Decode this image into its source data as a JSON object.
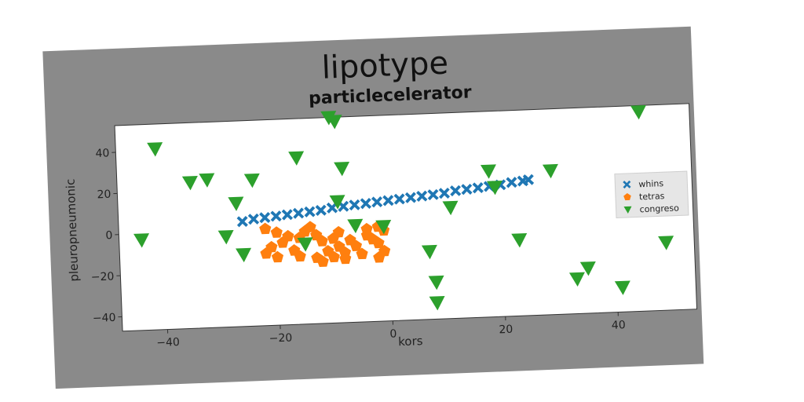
{
  "chart_data": {
    "type": "scatter",
    "title": "lipotype",
    "subtitle": "particlecelerator",
    "xlabel": "kors",
    "ylabel": "pleuropneumonic",
    "xlim": [
      -48,
      54
    ],
    "ylim": [
      -47,
      53
    ],
    "xticks": [
      -40,
      -20,
      0,
      20,
      40
    ],
    "yticks": [
      -40,
      -20,
      0,
      20,
      40
    ],
    "grid": false,
    "legend_position": "right",
    "series": [
      {
        "name": "whins",
        "marker": "X",
        "color": "#1f77b4",
        "points": [
          [
            -26,
            4
          ],
          [
            -24,
            5
          ],
          [
            -22,
            5.5
          ],
          [
            -20,
            6
          ],
          [
            -18,
            6.5
          ],
          [
            -16,
            7
          ],
          [
            -14,
            7.5
          ],
          [
            -12,
            8
          ],
          [
            -10,
            9
          ],
          [
            -8,
            9.5
          ],
          [
            -6,
            10
          ],
          [
            -4,
            10.5
          ],
          [
            -2,
            11
          ],
          [
            0,
            11.5
          ],
          [
            2,
            12
          ],
          [
            4,
            12.5
          ],
          [
            6,
            13
          ],
          [
            8,
            13.5
          ],
          [
            10,
            14
          ],
          [
            12,
            15
          ],
          [
            14,
            15.5
          ],
          [
            16,
            16
          ],
          [
            18,
            16.5
          ],
          [
            20,
            17
          ],
          [
            22,
            18
          ],
          [
            24,
            18.5
          ],
          [
            25,
            19
          ]
        ]
      },
      {
        "name": "tetras",
        "marker": "pentagon",
        "color": "#ff7f0e",
        "points": [
          [
            -22,
            0
          ],
          [
            -20,
            -2
          ],
          [
            -18,
            -4
          ],
          [
            -19,
            -7
          ],
          [
            -21,
            -9
          ],
          [
            -22,
            -12
          ],
          [
            -20,
            -14
          ],
          [
            -17,
            -11
          ],
          [
            -16,
            -5
          ],
          [
            -15,
            -2
          ],
          [
            -14,
            0
          ],
          [
            -13,
            -4
          ],
          [
            -12,
            -7
          ],
          [
            -11,
            -12
          ],
          [
            -13,
            -15
          ],
          [
            -12,
            -17
          ],
          [
            -10,
            -15
          ],
          [
            -9,
            -10
          ],
          [
            -8,
            -13
          ],
          [
            -10,
            -6
          ],
          [
            -7,
            -7
          ],
          [
            -6,
            -10
          ],
          [
            -5,
            -14
          ],
          [
            -4,
            -5
          ],
          [
            -3,
            -7
          ],
          [
            -4,
            -2
          ],
          [
            -2,
            -1
          ],
          [
            -1,
            -3
          ],
          [
            -2,
            -9
          ],
          [
            -1,
            -13
          ],
          [
            -2,
            -16
          ],
          [
            -8,
            -16
          ],
          [
            -9,
            -3
          ],
          [
            -16,
            -14
          ]
        ]
      },
      {
        "name": "congreso",
        "marker": "triangle-down",
        "color": "#2ca02c",
        "points": [
          [
            -44,
            -3
          ],
          [
            -41,
            41
          ],
          [
            -35,
            24
          ],
          [
            -32,
            25
          ],
          [
            -29,
            -3
          ],
          [
            -27,
            13
          ],
          [
            -26,
            -12
          ],
          [
            -24,
            24
          ],
          [
            -16,
            34
          ],
          [
            -15,
            -8
          ],
          [
            -10,
            53
          ],
          [
            -9,
            51
          ],
          [
            -8,
            28
          ],
          [
            -9,
            12
          ],
          [
            -6,
            0
          ],
          [
            -1,
            -1
          ],
          [
            7,
            -14
          ],
          [
            8,
            -29
          ],
          [
            8,
            -39
          ],
          [
            11,
            7
          ],
          [
            18,
            24
          ],
          [
            19,
            16
          ],
          [
            23,
            -10
          ],
          [
            29,
            23
          ],
          [
            33,
            -30
          ],
          [
            35,
            -25
          ],
          [
            41,
            -35
          ],
          [
            45,
            50
          ],
          [
            49,
            -14
          ]
        ]
      }
    ]
  },
  "colors": {
    "figure_bg": "#8a8a8a",
    "axes_bg": "#ffffff"
  }
}
